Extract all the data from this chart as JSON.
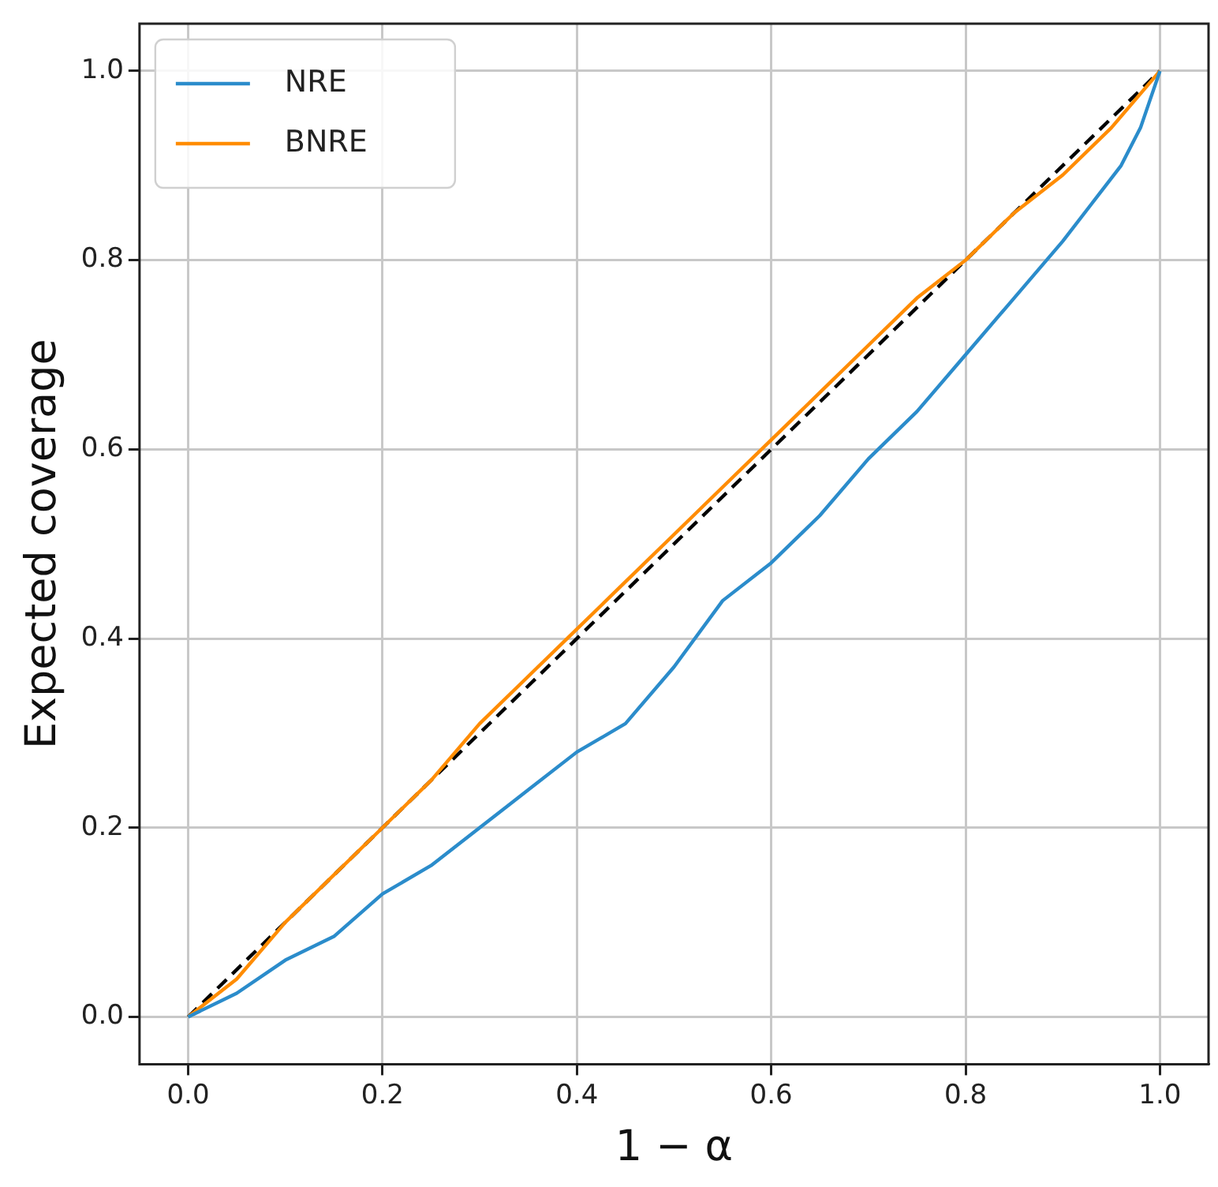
{
  "chart_data": {
    "type": "line",
    "xlabel": "1 − α",
    "ylabel": "Expected coverage",
    "xlim": [
      -0.05,
      1.05
    ],
    "ylim": [
      -0.05,
      1.05
    ],
    "xticks": [
      {
        "value": 0,
        "label": "0.0"
      },
      {
        "value": 0.2,
        "label": "0.2"
      },
      {
        "value": 0.4,
        "label": "0.4"
      },
      {
        "value": 0.6,
        "label": "0.6"
      },
      {
        "value": 0.8,
        "label": "0.8"
      },
      {
        "value": 1,
        "label": "1.0"
      }
    ],
    "yticks": [
      {
        "value": 0,
        "label": "0.0"
      },
      {
        "value": 0.2,
        "label": "0.2"
      },
      {
        "value": 0.4,
        "label": "0.4"
      },
      {
        "value": 0.6,
        "label": "0.6"
      },
      {
        "value": 0.8,
        "label": "0.8"
      },
      {
        "value": 1,
        "label": "1.0"
      }
    ],
    "grid": true,
    "legend": "top left",
    "marker": "none",
    "series": [
      {
        "name": "NRE",
        "color": "#2b8ccb",
        "x": [
          0,
          0.05,
          0.1,
          0.15,
          0.2,
          0.25,
          0.3,
          0.35,
          0.4,
          0.45,
          0.5,
          0.55,
          0.6,
          0.65,
          0.7,
          0.75,
          0.8,
          0.85,
          0.9,
          0.93,
          0.96,
          0.98,
          0.99,
          1
        ],
        "values": [
          0,
          0.025,
          0.06,
          0.085,
          0.13,
          0.16,
          0.2,
          0.24,
          0.28,
          0.31,
          0.37,
          0.44,
          0.48,
          0.53,
          0.59,
          0.64,
          0.7,
          0.76,
          0.82,
          0.86,
          0.9,
          0.94,
          0.97,
          1
        ]
      },
      {
        "name": "BNRE",
        "color": "#ff8c00",
        "x": [
          0,
          0.05,
          0.1,
          0.15,
          0.2,
          0.25,
          0.3,
          0.35,
          0.4,
          0.45,
          0.5,
          0.55,
          0.6,
          0.65,
          0.7,
          0.75,
          0.8,
          0.85,
          0.9,
          0.95,
          1
        ],
        "values": [
          0,
          0.04,
          0.1,
          0.15,
          0.2,
          0.25,
          0.31,
          0.36,
          0.41,
          0.46,
          0.51,
          0.56,
          0.61,
          0.66,
          0.71,
          0.76,
          0.8,
          0.85,
          0.89,
          0.94,
          1
        ]
      },
      {
        "color": "#000000",
        "line_style": "dashed",
        "x": [
          0,
          1
        ],
        "values": [
          0,
          1
        ]
      }
    ]
  }
}
